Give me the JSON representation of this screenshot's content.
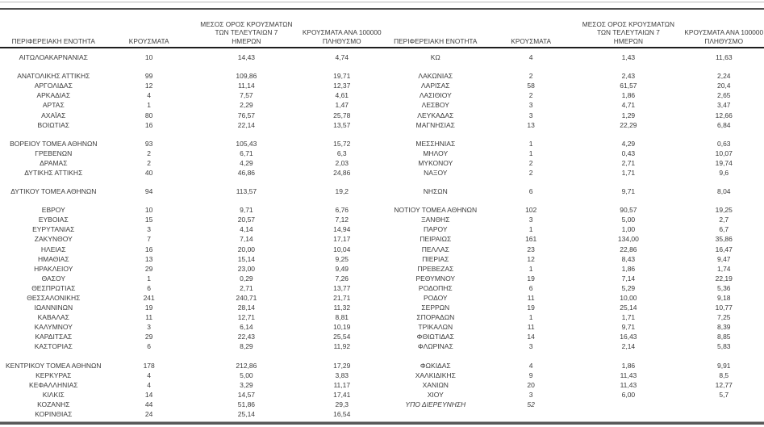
{
  "colors": {
    "text": "#3b3b3b",
    "header_rule": "#1e1e1e",
    "top_rule": "#515151",
    "bottom_rule": "#585858"
  },
  "table": {
    "headers": {
      "region": "ΠΕΡΙΦΕΡΕΙΑΚΗ ΕΝΟΤΗΤΑ",
      "cases": "ΚΡΟΥΣΜΑΤΑ",
      "avg7": "ΜΕΣΟΣ ΟΡΟΣ ΚΡΟΥΣΜΑΤΩΝ\nΤΩΝ ΤΕΛΕΥΤΑΙΩΝ 7\nΗΜΕΡΩΝ",
      "per100k": "ΚΡΟΥΣΜΑΤΑ ΑΝΑ 100000\nΠΛΗΘΥΣΜΟ"
    },
    "left_groups": [
      [
        {
          "region": "ΑΙΤΩΛΟΑΚΑΡΝΑΝΙΑΣ",
          "cases": "10",
          "avg": "14,43",
          "per100k": "4,74"
        }
      ],
      [
        {
          "region": "ΑΝΑΤΟΛΙΚΗΣ ΑΤΤΙΚΗΣ",
          "cases": "99",
          "avg": "109,86",
          "per100k": "19,71"
        },
        {
          "region": "ΑΡΓΟΛΙΔΑΣ",
          "cases": "12",
          "avg": "11,14",
          "per100k": "12,37"
        },
        {
          "region": "ΑΡΚΑΔΙΑΣ",
          "cases": "4",
          "avg": "7,57",
          "per100k": "4,61"
        },
        {
          "region": "ΑΡΤΑΣ",
          "cases": "1",
          "avg": "2,29",
          "per100k": "1,47"
        },
        {
          "region": "ΑΧΑΪΑΣ",
          "cases": "80",
          "avg": "76,57",
          "per100k": "25,78"
        },
        {
          "region": "ΒΟΙΩΤΙΑΣ",
          "cases": "16",
          "avg": "22,14",
          "per100k": "13,57"
        }
      ],
      [
        {
          "region": "ΒΟΡΕΙΟΥ ΤΟΜΕΑ ΑΘΗΝΩΝ",
          "cases": "93",
          "avg": "105,43",
          "per100k": "15,72"
        },
        {
          "region": "ΓΡΕΒΕΝΩΝ",
          "cases": "2",
          "avg": "6,71",
          "per100k": "6,3"
        },
        {
          "region": "ΔΡΑΜΑΣ",
          "cases": "2",
          "avg": "4,29",
          "per100k": "2,03"
        },
        {
          "region": "ΔΥΤΙΚΗΣ ΑΤΤΙΚΗΣ",
          "cases": "40",
          "avg": "46,86",
          "per100k": "24,86"
        }
      ],
      [
        {
          "region": "ΔΥΤΙΚΟΥ ΤΟΜΕΑ ΑΘΗΝΩΝ",
          "cases": "94",
          "avg": "113,57",
          "per100k": "19,2"
        }
      ],
      [
        {
          "region": "ΕΒΡΟΥ",
          "cases": "10",
          "avg": "9,71",
          "per100k": "6,76"
        },
        {
          "region": "ΕΥΒΟΙΑΣ",
          "cases": "15",
          "avg": "20,57",
          "per100k": "7,12"
        },
        {
          "region": "ΕΥΡΥΤΑΝΙΑΣ",
          "cases": "3",
          "avg": "4,14",
          "per100k": "14,94"
        },
        {
          "region": "ΖΑΚΥΝΘΟΥ",
          "cases": "7",
          "avg": "7,14",
          "per100k": "17,17"
        },
        {
          "region": "ΗΛΕΙΑΣ",
          "cases": "16",
          "avg": "20,00",
          "per100k": "10,04"
        },
        {
          "region": "ΗΜΑΘΙΑΣ",
          "cases": "13",
          "avg": "15,14",
          "per100k": "9,25"
        },
        {
          "region": "ΗΡΑΚΛΕΙΟΥ",
          "cases": "29",
          "avg": "23,00",
          "per100k": "9,49"
        },
        {
          "region": "ΘΑΣΟΥ",
          "cases": "1",
          "avg": "0,29",
          "per100k": "7,26"
        },
        {
          "region": "ΘΕΣΠΡΩΤΙΑΣ",
          "cases": "6",
          "avg": "2,71",
          "per100k": "13,77"
        },
        {
          "region": "ΘΕΣΣΑΛΟΝΙΚΗΣ",
          "cases": "241",
          "avg": "240,71",
          "per100k": "21,71"
        },
        {
          "region": "ΙΩΑΝΝΙΝΩΝ",
          "cases": "19",
          "avg": "28,14",
          "per100k": "11,32"
        },
        {
          "region": "ΚΑΒΑΛΑΣ",
          "cases": "11",
          "avg": "12,71",
          "per100k": "8,81"
        },
        {
          "region": "ΚΑΛΥΜΝΟΥ",
          "cases": "3",
          "avg": "6,14",
          "per100k": "10,19"
        },
        {
          "region": "ΚΑΡΔΙΤΣΑΣ",
          "cases": "29",
          "avg": "22,43",
          "per100k": "25,54"
        },
        {
          "region": "ΚΑΣΤΟΡΙΑΣ",
          "cases": "6",
          "avg": "8,29",
          "per100k": "11,92"
        }
      ],
      [
        {
          "region": "ΚΕΝΤΡΙΚΟΥ ΤΟΜΕΑ ΑΘΗΝΩΝ",
          "cases": "178",
          "avg": "212,86",
          "per100k": "17,29"
        },
        {
          "region": "ΚΕΡΚΥΡΑΣ",
          "cases": "4",
          "avg": "5,00",
          "per100k": "3,83"
        },
        {
          "region": "ΚΕΦΑΛΛΗΝΙΑΣ",
          "cases": "4",
          "avg": "3,29",
          "per100k": "11,17"
        },
        {
          "region": "ΚΙΛΚΙΣ",
          "cases": "14",
          "avg": "14,57",
          "per100k": "17,41"
        },
        {
          "region": "ΚΟΖΑΝΗΣ",
          "cases": "44",
          "avg": "51,86",
          "per100k": "29,3"
        },
        {
          "region": "ΚΟΡΙΝΘΙΑΣ",
          "cases": "24",
          "avg": "25,14",
          "per100k": "16,54"
        }
      ]
    ],
    "right_groups": [
      [
        {
          "region": "ΚΩ",
          "cases": "4",
          "avg": "1,43",
          "per100k": "11,63"
        }
      ],
      [
        {
          "region": "ΛΑΚΩΝΙΑΣ",
          "cases": "2",
          "avg": "2,43",
          "per100k": "2,24"
        },
        {
          "region": "ΛΑΡΙΣΑΣ",
          "cases": "58",
          "avg": "61,57",
          "per100k": "20,4"
        },
        {
          "region": "ΛΑΣΙΘΙΟΥ",
          "cases": "2",
          "avg": "1,86",
          "per100k": "2,65"
        },
        {
          "region": "ΛΕΣΒΟΥ",
          "cases": "3",
          "avg": "4,71",
          "per100k": "3,47"
        },
        {
          "region": "ΛΕΥΚΑΔΑΣ",
          "cases": "3",
          "avg": "1,29",
          "per100k": "12,66"
        },
        {
          "region": "ΜΑΓΝΗΣΙΑΣ",
          "cases": "13",
          "avg": "22,29",
          "per100k": "6,84"
        }
      ],
      [
        {
          "region": "ΜΕΣΣΗΝΙΑΣ",
          "cases": "1",
          "avg": "4,29",
          "per100k": "0,63"
        },
        {
          "region": "ΜΗΛΟΥ",
          "cases": "1",
          "avg": "0,43",
          "per100k": "10,07"
        },
        {
          "region": "ΜΥΚΟΝΟΥ",
          "cases": "2",
          "avg": "2,71",
          "per100k": "19,74"
        },
        {
          "region": "ΝΑΞΟΥ",
          "cases": "2",
          "avg": "1,71",
          "per100k": "9,6"
        }
      ],
      [
        {
          "region": "ΝΗΣΩΝ",
          "cases": "6",
          "avg": "9,71",
          "per100k": "8,04"
        }
      ],
      [
        {
          "region": "ΝΟΤΙΟΥ ΤΟΜΕΑ ΑΘΗΝΩΝ",
          "cases": "102",
          "avg": "90,57",
          "per100k": "19,25"
        },
        {
          "region": "ΞΑΝΘΗΣ",
          "cases": "3",
          "avg": "5,00",
          "per100k": "2,7"
        },
        {
          "region": "ΠΑΡΟΥ",
          "cases": "1",
          "avg": "1,00",
          "per100k": "6,7"
        },
        {
          "region": "ΠΕΙΡΑΙΩΣ",
          "cases": "161",
          "avg": "134,00",
          "per100k": "35,86"
        },
        {
          "region": "ΠΕΛΛΑΣ",
          "cases": "23",
          "avg": "22,86",
          "per100k": "16,47"
        },
        {
          "region": "ΠΙΕΡΙΑΣ",
          "cases": "12",
          "avg": "8,43",
          "per100k": "9,47"
        },
        {
          "region": "ΠΡΕΒΕΖΑΣ",
          "cases": "1",
          "avg": "1,86",
          "per100k": "1,74"
        },
        {
          "region": "ΡΕΘΥΜΝΟΥ",
          "cases": "19",
          "avg": "7,14",
          "per100k": "22,19"
        },
        {
          "region": "ΡΟΔΟΠΗΣ",
          "cases": "6",
          "avg": "5,29",
          "per100k": "5,36"
        },
        {
          "region": "ΡΟΔΟΥ",
          "cases": "11",
          "avg": "10,00",
          "per100k": "9,18"
        },
        {
          "region": "ΣΕΡΡΩΝ",
          "cases": "19",
          "avg": "25,14",
          "per100k": "10,77"
        },
        {
          "region": "ΣΠΟΡΑΔΩΝ",
          "cases": "1",
          "avg": "1,71",
          "per100k": "7,25"
        },
        {
          "region": "ΤΡΙΚΑΛΩΝ",
          "cases": "11",
          "avg": "9,71",
          "per100k": "8,39"
        },
        {
          "region": "ΦΘΙΩΤΙΔΑΣ",
          "cases": "14",
          "avg": "16,43",
          "per100k": "8,85"
        },
        {
          "region": "ΦΛΩΡΙΝΑΣ",
          "cases": "3",
          "avg": "2,14",
          "per100k": "5,83"
        }
      ],
      [
        {
          "region": "ΦΩΚΙΔΑΣ",
          "cases": "4",
          "avg": "1,86",
          "per100k": "9,91"
        },
        {
          "region": "ΧΑΛΚΙΔΙΚΗΣ",
          "cases": "9",
          "avg": "11,43",
          "per100k": "8,5"
        },
        {
          "region": "ΧΑΝΙΩΝ",
          "cases": "20",
          "avg": "11,43",
          "per100k": "12,77"
        },
        {
          "region": "ΧΙΟΥ",
          "cases": "3",
          "avg": "6,00",
          "per100k": "5,7"
        },
        {
          "region": "ΥΠΟ ΔΙΕΡΕΥΝΗΣΗ",
          "cases": "52",
          "avg": "",
          "per100k": "",
          "style": "italic"
        }
      ]
    ]
  }
}
